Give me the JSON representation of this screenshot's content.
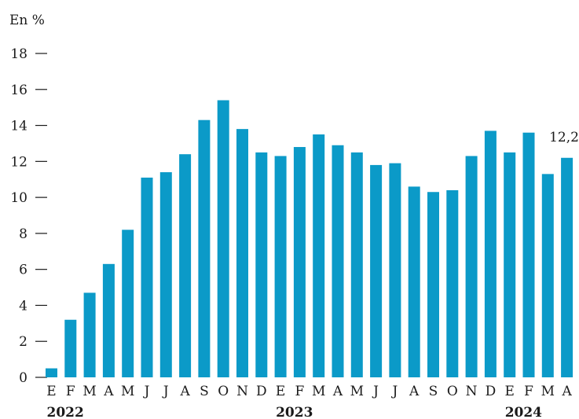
{
  "chart_data": {
    "type": "bar",
    "unit_label": "En %",
    "categories": [
      "E",
      "F",
      "M",
      "A",
      "M",
      "J",
      "J",
      "A",
      "S",
      "O",
      "N",
      "D",
      "E",
      "F",
      "M",
      "A",
      "M",
      "J",
      "J",
      "A",
      "S",
      "O",
      "N",
      "D",
      "E",
      "F",
      "M",
      "A"
    ],
    "year_labels": [
      {
        "label": "2022",
        "category_index": 0
      },
      {
        "label": "2023",
        "category_index": 12
      },
      {
        "label": "2024",
        "category_index": 24
      }
    ],
    "values": [
      0.5,
      3.2,
      4.7,
      6.3,
      8.2,
      11.1,
      11.4,
      12.4,
      14.3,
      15.4,
      13.8,
      12.5,
      12.3,
      12.8,
      13.5,
      12.9,
      12.5,
      11.8,
      11.9,
      10.6,
      10.3,
      10.4,
      12.3,
      13.7,
      12.5,
      13.6,
      11.3,
      12.2
    ],
    "ylim": [
      0,
      18
    ],
    "yticks": [
      0,
      2,
      4,
      6,
      8,
      10,
      12,
      14,
      16,
      18
    ],
    "grid": false,
    "data_labels": [
      {
        "index": 27,
        "text": "12,2"
      }
    ],
    "bar_color": "#0b9ac8"
  }
}
